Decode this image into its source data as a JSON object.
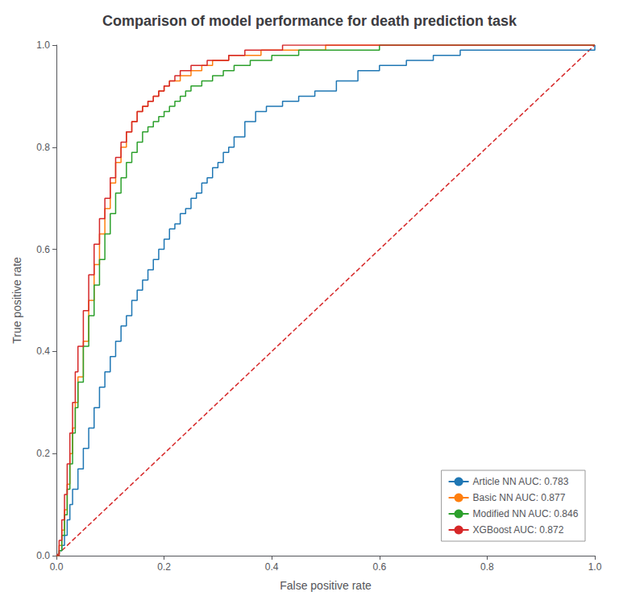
{
  "chart_data": {
    "type": "line",
    "title": "Comparison of model performance for death prediction task",
    "x_label": "False positive rate",
    "y_label": "True positive rate",
    "xlim": [
      0.0,
      1.0
    ],
    "ylim": [
      0.0,
      1.0
    ],
    "xticks": [
      {
        "value": 0,
        "label": "0.0"
      },
      0.2,
      0.4,
      0.6,
      0.8,
      {
        "value": 1,
        "label": "1.0"
      }
    ],
    "yticks": [
      {
        "value": 0,
        "label": "0.0"
      },
      0.2,
      0.4,
      0.6,
      0.8,
      {
        "value": 1,
        "label": "1.0"
      }
    ],
    "grid": false,
    "legend": "lower right",
    "series": [
      {
        "name": "Article NN AUC: 0.783",
        "color": "#1f77b4",
        "type": "step",
        "line_style": "solid",
        "x": [
          0,
          0.005,
          0.01,
          0.015,
          0.02,
          0.025,
          0.03,
          0.04,
          0.05,
          0.06,
          0.07,
          0.08,
          0.09,
          0.1,
          0.11,
          0.12,
          0.13,
          0.14,
          0.15,
          0.16,
          0.17,
          0.18,
          0.19,
          0.2,
          0.21,
          0.22,
          0.23,
          0.24,
          0.25,
          0.26,
          0.27,
          0.28,
          0.29,
          0.3,
          0.31,
          0.32,
          0.33,
          0.35,
          0.37,
          0.39,
          0.42,
          0.45,
          0.48,
          0.52,
          0.56,
          0.6,
          0.65,
          0.7,
          0.75,
          1.0
        ],
        "values": [
          0,
          0.01,
          0.02,
          0.04,
          0.07,
          0.1,
          0.13,
          0.17,
          0.21,
          0.25,
          0.29,
          0.33,
          0.36,
          0.39,
          0.42,
          0.45,
          0.47,
          0.5,
          0.52,
          0.54,
          0.56,
          0.58,
          0.6,
          0.62,
          0.64,
          0.65,
          0.67,
          0.68,
          0.7,
          0.71,
          0.73,
          0.74,
          0.76,
          0.77,
          0.79,
          0.8,
          0.82,
          0.85,
          0.87,
          0.88,
          0.89,
          0.9,
          0.91,
          0.93,
          0.95,
          0.96,
          0.97,
          0.98,
          0.99,
          1.0
        ]
      },
      {
        "name": "Basic NN AUC: 0.877",
        "color": "#ff7f0e",
        "type": "step",
        "line_style": "solid",
        "x": [
          0,
          0.005,
          0.01,
          0.015,
          0.02,
          0.025,
          0.03,
          0.035,
          0.04,
          0.05,
          0.06,
          0.07,
          0.08,
          0.09,
          0.1,
          0.11,
          0.12,
          0.13,
          0.14,
          0.15,
          0.16,
          0.17,
          0.18,
          0.19,
          0.2,
          0.21,
          0.22,
          0.23,
          0.24,
          0.25,
          0.26,
          0.27,
          0.28,
          0.29,
          0.3,
          0.32,
          0.35,
          0.38,
          0.42,
          0.46,
          0.5,
          1.0
        ],
        "values": [
          0,
          0.02,
          0.05,
          0.09,
          0.14,
          0.2,
          0.25,
          0.3,
          0.35,
          0.42,
          0.5,
          0.57,
          0.63,
          0.68,
          0.73,
          0.77,
          0.8,
          0.83,
          0.85,
          0.87,
          0.88,
          0.89,
          0.9,
          0.91,
          0.92,
          0.93,
          0.93,
          0.94,
          0.94,
          0.95,
          0.95,
          0.96,
          0.96,
          0.97,
          0.97,
          0.98,
          0.98,
          0.99,
          0.99,
          0.99,
          1.0,
          1.0
        ]
      },
      {
        "name": "Modified NN AUC: 0.846",
        "color": "#2ca02c",
        "type": "step",
        "line_style": "solid",
        "x": [
          0,
          0.005,
          0.01,
          0.015,
          0.02,
          0.025,
          0.03,
          0.035,
          0.04,
          0.05,
          0.06,
          0.07,
          0.08,
          0.09,
          0.1,
          0.11,
          0.12,
          0.13,
          0.14,
          0.15,
          0.16,
          0.17,
          0.18,
          0.19,
          0.2,
          0.21,
          0.22,
          0.23,
          0.24,
          0.25,
          0.27,
          0.29,
          0.31,
          0.33,
          0.36,
          0.4,
          0.45,
          0.5,
          0.6,
          1.0
        ],
        "values": [
          0,
          0.01,
          0.04,
          0.08,
          0.13,
          0.18,
          0.24,
          0.29,
          0.34,
          0.41,
          0.47,
          0.53,
          0.58,
          0.63,
          0.67,
          0.71,
          0.74,
          0.77,
          0.79,
          0.81,
          0.83,
          0.84,
          0.85,
          0.86,
          0.87,
          0.88,
          0.89,
          0.9,
          0.91,
          0.92,
          0.93,
          0.94,
          0.95,
          0.96,
          0.97,
          0.98,
          0.99,
          0.99,
          1.0,
          1.0
        ]
      },
      {
        "name": "XGBoost AUC: 0.872",
        "color": "#d62728",
        "type": "step",
        "line_style": "solid",
        "x": [
          0,
          0.005,
          0.01,
          0.015,
          0.02,
          0.025,
          0.03,
          0.035,
          0.04,
          0.05,
          0.06,
          0.07,
          0.08,
          0.09,
          0.1,
          0.11,
          0.12,
          0.13,
          0.14,
          0.15,
          0.16,
          0.17,
          0.18,
          0.19,
          0.2,
          0.21,
          0.22,
          0.23,
          0.24,
          0.25,
          0.26,
          0.28,
          0.3,
          0.32,
          0.35,
          0.38,
          0.42,
          0.46,
          1.0
        ],
        "values": [
          0,
          0.03,
          0.07,
          0.12,
          0.18,
          0.24,
          0.3,
          0.36,
          0.41,
          0.48,
          0.55,
          0.61,
          0.66,
          0.7,
          0.74,
          0.78,
          0.81,
          0.83,
          0.85,
          0.87,
          0.88,
          0.89,
          0.9,
          0.91,
          0.92,
          0.93,
          0.94,
          0.95,
          0.95,
          0.96,
          0.96,
          0.97,
          0.97,
          0.98,
          0.99,
          0.99,
          1.0,
          1.0,
          1.0
        ]
      },
      {
        "color": "#d62728",
        "type": "line",
        "line_style": "dashed",
        "x": [
          0,
          1
        ],
        "values": [
          0,
          1
        ]
      }
    ]
  }
}
